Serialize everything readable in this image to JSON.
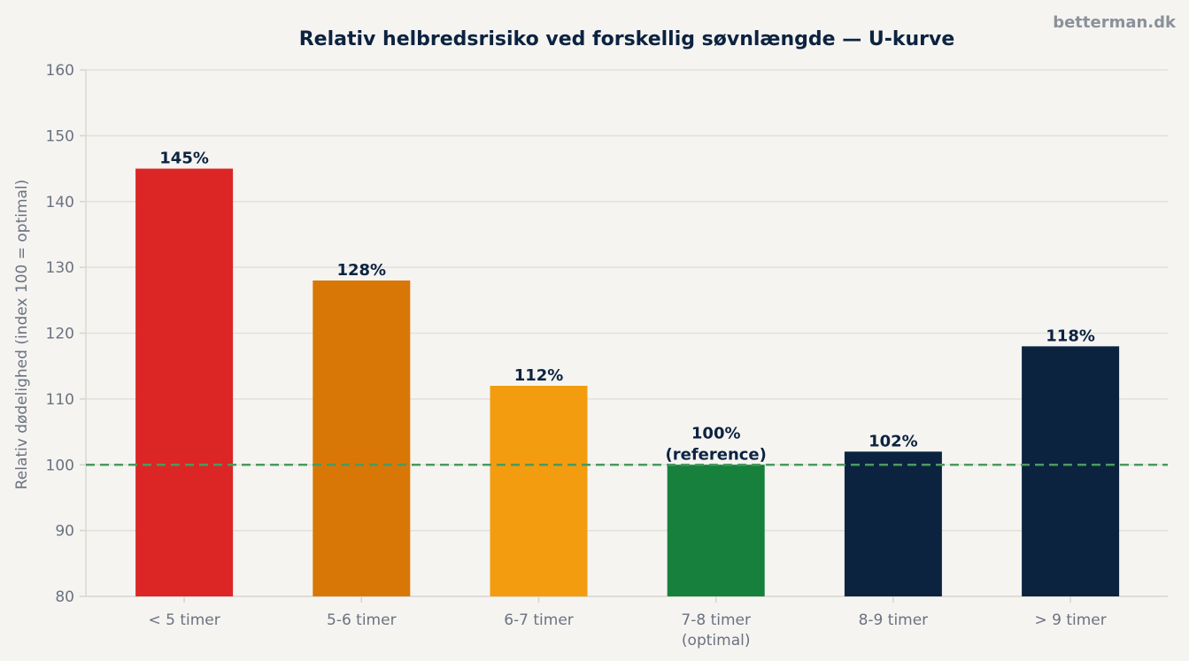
{
  "watermark": "betterman.dk",
  "chart_data": {
    "type": "bar",
    "title": "Relativ helbredsrisiko ved forskellig søvnlængde — U-kurve",
    "xlabel": "",
    "ylabel": "Relativ dødelighed (index 100 = optimal)",
    "ylim": [
      80,
      160
    ],
    "yticks": [
      80,
      90,
      100,
      110,
      120,
      130,
      140,
      150,
      160
    ],
    "grid": true,
    "reference_line": 100,
    "categories": [
      "< 5 timer",
      "5-6 timer",
      "6-7 timer",
      "7-8 timer\n(optimal)",
      "8-9 timer",
      "> 9 timer"
    ],
    "values": [
      145,
      128,
      112,
      100,
      102,
      118
    ],
    "data_labels": [
      "145%",
      "128%",
      "112%",
      "100%\n(reference)",
      "102%",
      "118%"
    ],
    "colors": [
      "#dc2626",
      "#d97706",
      "#f39c0f",
      "#16803c",
      "#0c2340",
      "#0c2340"
    ],
    "reference_color": "#4a9a5e"
  }
}
